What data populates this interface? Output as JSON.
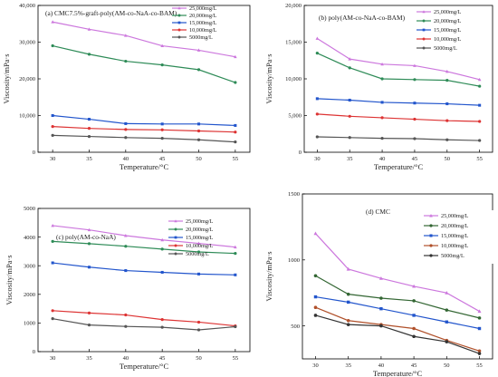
{
  "colors": {
    "s25000": "#cc77dd",
    "s20000": "#2e8b57",
    "s15000": "#2255cc",
    "s10000": "#dd3333",
    "s5000": "#555555",
    "d_s20000": "#336633",
    "d_s10000": "#b0502a",
    "d_s5000": "#333333"
  },
  "chart_data": [
    {
      "type": "line",
      "title": "(a) CMC7.5%-graft-poly(AM-co-NaA-co-BAM)",
      "xlabel": "Temperature/°C",
      "ylabel": "Viscosity/mPa·s",
      "x": [
        30,
        35,
        40,
        45,
        50,
        55
      ],
      "xticks": [
        "30",
        "35",
        "40",
        "45",
        "50",
        "55"
      ],
      "xlim": [
        28,
        57
      ],
      "ylim": [
        0,
        40000
      ],
      "yticks": [
        "0",
        "10,000",
        "20,000",
        "30,000",
        "40,000"
      ],
      "legend_position": "top-right",
      "series": [
        {
          "name": "25,000mg/L",
          "values": [
            35500,
            33500,
            31800,
            29000,
            27800,
            26000
          ]
        },
        {
          "name": "20,000mg/L",
          "values": [
            29000,
            26700,
            24800,
            23800,
            22500,
            19000
          ]
        },
        {
          "name": "15,000mg/L",
          "values": [
            10000,
            9000,
            7800,
            7700,
            7700,
            7300
          ]
        },
        {
          "name": "10,000mg/L",
          "values": [
            7000,
            6500,
            6200,
            6100,
            5800,
            5500
          ]
        },
        {
          "name": "5000mg/L",
          "values": [
            4600,
            4300,
            4000,
            3800,
            3400,
            2800
          ]
        }
      ]
    },
    {
      "type": "line",
      "title": "(b) poly(AM-co-NaA-co-BAM)",
      "xlabel": "Temperature/°C",
      "ylabel": "Viscosity/mPa·s",
      "x": [
        30,
        35,
        40,
        45,
        50,
        55
      ],
      "xticks": [
        "30",
        "35",
        "40",
        "45",
        "50",
        "55"
      ],
      "xlim": [
        28,
        57
      ],
      "ylim": [
        0,
        20000
      ],
      "yticks": [
        "0",
        "5,000",
        "10,000",
        "15,000",
        "20,000"
      ],
      "legend_position": "top-right",
      "series": [
        {
          "name": "25,000mg/L",
          "values": [
            15500,
            12700,
            12000,
            11800,
            11000,
            9900
          ]
        },
        {
          "name": "20,000mg/L",
          "values": [
            13500,
            11500,
            10000,
            9900,
            9800,
            9000
          ]
        },
        {
          "name": "15,000mg/L",
          "values": [
            7300,
            7100,
            6800,
            6700,
            6600,
            6400
          ]
        },
        {
          "name": "10,000mg/L",
          "values": [
            5200,
            4900,
            4700,
            4500,
            4300,
            4200
          ]
        },
        {
          "name": "5000mg/L",
          "values": [
            2100,
            2000,
            1900,
            1850,
            1700,
            1600
          ]
        }
      ]
    },
    {
      "type": "line",
      "title": "(c) poly(AM-co-NaA)",
      "xlabel": "Temperature/°C",
      "ylabel": "Viscosity/mPa·s",
      "x": [
        30,
        35,
        40,
        45,
        50,
        55
      ],
      "xticks": [
        "30",
        "35",
        "40",
        "45",
        "50",
        "55"
      ],
      "xlim": [
        28,
        57
      ],
      "ylim": [
        0,
        5000
      ],
      "yticks": [
        "0",
        "1000",
        "2000",
        "3000",
        "4000",
        "5000"
      ],
      "legend_position": "top-right",
      "series": [
        {
          "name": "25,000mg/L",
          "values": [
            4400,
            4250,
            4050,
            3900,
            3780,
            3650
          ]
        },
        {
          "name": "20,000mg/L",
          "values": [
            3850,
            3770,
            3680,
            3580,
            3480,
            3430
          ]
        },
        {
          "name": "15,000mg/L",
          "values": [
            3100,
            2950,
            2830,
            2770,
            2710,
            2680
          ]
        },
        {
          "name": "10,000mg/L",
          "values": [
            1430,
            1350,
            1280,
            1120,
            1030,
            900
          ]
        },
        {
          "name": "5000mg/L",
          "values": [
            1150,
            930,
            880,
            850,
            760,
            870
          ]
        }
      ]
    },
    {
      "type": "line",
      "title": "(d) CMC",
      "xlabel": "Temperature/°C",
      "ylabel": "Viscosity/mPa·s",
      "x": [
        30,
        35,
        40,
        45,
        50,
        55
      ],
      "xticks": [
        "30",
        "35",
        "40",
        "45",
        "50",
        "55"
      ],
      "xlim": [
        28,
        57
      ],
      "ylim": [
        250,
        1500
      ],
      "yticks": [
        "500",
        "1000",
        "1500"
      ],
      "ytick_values": [
        500,
        1000,
        1500
      ],
      "legend_position": "top-right",
      "series": [
        {
          "name": "25,000mg/L",
          "values": [
            1200,
            930,
            860,
            800,
            750,
            610
          ]
        },
        {
          "name": "20,000mg/L",
          "values": [
            880,
            740,
            710,
            690,
            620,
            560
          ]
        },
        {
          "name": "15,000mg/L",
          "values": [
            720,
            680,
            630,
            580,
            530,
            480
          ]
        },
        {
          "name": "10,000mg/L",
          "values": [
            640,
            540,
            510,
            480,
            390,
            310
          ]
        },
        {
          "name": "5000mg/L",
          "values": [
            580,
            510,
            500,
            420,
            380,
            290
          ]
        }
      ]
    }
  ]
}
